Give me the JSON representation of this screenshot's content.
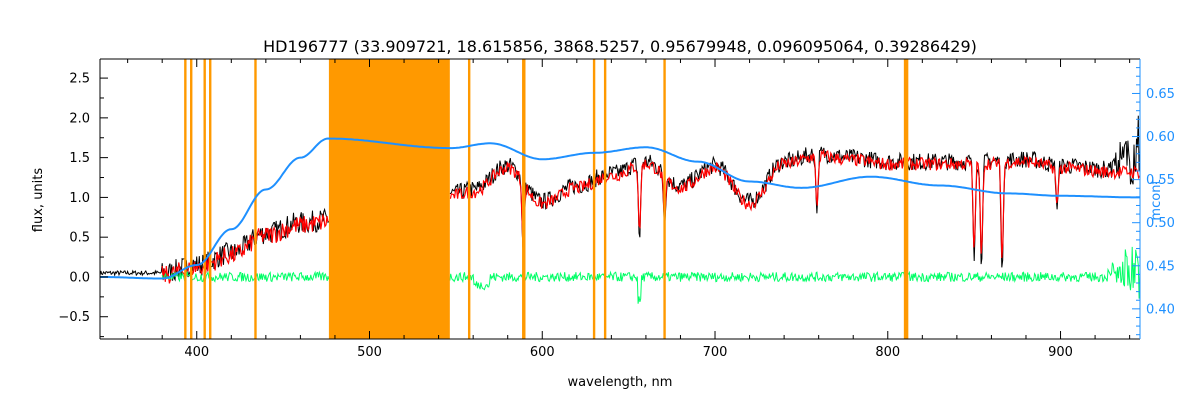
{
  "chart_data": {
    "type": "line",
    "title": "HD196777    (33.909721, 18.615856, 3868.5257, 0.95679948, 0.096095064, 0.39286429)",
    "xlabel": "wavelength, nm",
    "ylabel": "flux, units",
    "y2label": "mcont",
    "xlim": [
      344,
      946
    ],
    "ylim": [
      -0.78,
      2.74
    ],
    "y2lim": [
      0.365,
      0.69
    ],
    "x_ticks": [
      {
        "value": 400,
        "label": "400"
      },
      {
        "value": 500,
        "label": "500"
      },
      {
        "value": 600,
        "label": "600"
      },
      {
        "value": 700,
        "label": "700"
      },
      {
        "value": 800,
        "label": "800"
      },
      {
        "value": 900,
        "label": "900"
      }
    ],
    "y_ticks": [
      {
        "value": -0.5,
        "label": "−0.5"
      },
      {
        "value": 0.0,
        "label": "0.0"
      },
      {
        "value": 0.5,
        "label": "0.5"
      },
      {
        "value": 1.0,
        "label": "1.0"
      },
      {
        "value": 1.5,
        "label": "1.5"
      },
      {
        "value": 2.0,
        "label": "2.0"
      },
      {
        "value": 2.5,
        "label": "2.5"
      }
    ],
    "y2_ticks": [
      {
        "value": 0.4,
        "label": "0.40"
      },
      {
        "value": 0.45,
        "label": "0.45"
      },
      {
        "value": 0.5,
        "label": "0.50"
      },
      {
        "value": 0.55,
        "label": "0.55"
      },
      {
        "value": 0.6,
        "label": "0.60"
      },
      {
        "value": 0.65,
        "label": "0.65"
      }
    ],
    "colors": {
      "observed": "#000000",
      "model": "#ff0000",
      "residual": "#00ff66",
      "continuum": "#1e90ff",
      "mask": "#ff9900",
      "axis_right": "#1e90ff"
    },
    "masked_bands": [
      {
        "x0": 476.5,
        "x1": 546.5
      }
    ],
    "masked_lines": [
      393.4,
      396.8,
      404.6,
      407.8,
      434.0,
      557.7,
      589.0,
      589.6,
      630.0,
      636.4,
      670.8,
      810.0,
      811.2
    ],
    "continuum": {
      "x": [
        344,
        380,
        400,
        420,
        440,
        460,
        476,
        547,
        570,
        600,
        630,
        660,
        690,
        720,
        750,
        790,
        830,
        870,
        900,
        946
      ],
      "y": [
        0.0,
        -0.02,
        0.15,
        0.6,
        1.1,
        1.5,
        1.74,
        1.62,
        1.68,
        1.48,
        1.56,
        1.63,
        1.45,
        1.2,
        1.12,
        1.26,
        1.15,
        1.05,
        1.02,
        1.0
      ]
    },
    "observed_envelope": {
      "x": [
        344,
        380,
        400,
        420,
        440,
        460,
        476,
        547,
        560,
        580,
        600,
        620,
        640,
        660,
        680,
        700,
        720,
        740,
        760,
        780,
        800,
        820,
        850,
        880,
        900,
        930,
        946
      ],
      "y": [
        0.05,
        0.05,
        0.15,
        0.3,
        0.55,
        0.68,
        0.72,
        1.05,
        1.1,
        1.4,
        0.95,
        1.15,
        1.3,
        1.45,
        1.15,
        1.4,
        0.95,
        1.45,
        1.55,
        1.5,
        1.45,
        1.45,
        1.45,
        1.48,
        1.4,
        1.35,
        1.35
      ]
    },
    "residual_level": 0.0,
    "deep_absorptions": [
      {
        "x": 589.0,
        "y": 0.25
      },
      {
        "x": 656.3,
        "y": 0.45
      },
      {
        "x": 670.8,
        "y": 0.65
      },
      {
        "x": 759.0,
        "y": 0.8
      },
      {
        "x": 850.0,
        "y": 0.2
      },
      {
        "x": 854.2,
        "y": 0.1
      },
      {
        "x": 866.2,
        "y": 0.05
      },
      {
        "x": 898.0,
        "y": 0.85
      }
    ]
  }
}
